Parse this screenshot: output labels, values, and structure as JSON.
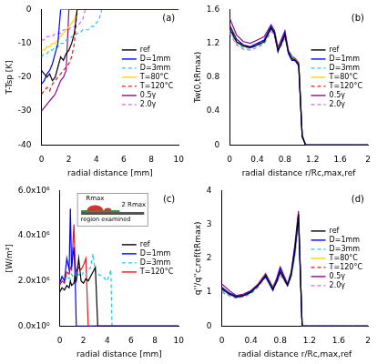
{
  "chart_data": [
    {
      "type": "line",
      "title": "(a)",
      "x_label": "radial distance [mm]",
      "y_label": "T-Tsp [K]",
      "xlim": [
        0,
        10
      ],
      "xticks": [
        0,
        2,
        4,
        6,
        8,
        10
      ],
      "ylim": [
        -40,
        0
      ],
      "yticks": [
        -40,
        -30,
        -20,
        -10,
        0
      ],
      "grid": false,
      "legend": "right",
      "x": [
        0,
        0.2,
        0.4,
        0.6,
        0.8,
        1.0,
        1.2,
        1.4,
        1.6,
        1.8,
        2.0,
        2.2,
        2.4,
        2.6,
        2.8,
        3.0,
        3.2,
        3.4,
        3.6,
        3.8,
        4.0,
        4.2,
        4.4,
        4.6,
        5,
        6,
        8,
        10
      ],
      "series": [
        {
          "name": "ref",
          "color": "#000000",
          "line_style": "solid",
          "values": [
            -18,
            -19,
            -20,
            -19,
            -21,
            -20,
            -17,
            -14,
            -15,
            -13,
            -12,
            -10,
            -7,
            0,
            0,
            0,
            0,
            0,
            0,
            0,
            0,
            0,
            0,
            0,
            0,
            0,
            0,
            0
          ]
        },
        {
          "name": "D=1mm",
          "color": "#0000ff",
          "line_style": "solid",
          "values": [
            -22,
            -21,
            -19,
            -18,
            -16,
            -13,
            -10,
            0,
            0,
            0,
            0,
            0,
            0,
            0,
            0,
            0,
            0,
            0,
            0,
            0,
            0,
            0,
            0,
            0,
            0,
            0,
            0,
            0
          ]
        },
        {
          "name": "D=3mm",
          "color": "#1ec8f0",
          "line_style": "dashed",
          "values": [
            -14,
            -13,
            -13,
            -12,
            -12,
            -11,
            -11,
            -10,
            -10,
            -9,
            -9,
            -8,
            -8,
            -7,
            -7,
            -6,
            -6,
            -6,
            -5,
            -5,
            -4,
            -3,
            0,
            0,
            0,
            0,
            0,
            0
          ]
        },
        {
          "name": "T=80°C",
          "color": "#ffd400",
          "line_style": "solid",
          "values": [
            -12,
            -12,
            -11,
            -11,
            -10,
            -10,
            -9,
            -8,
            -7,
            -6,
            -5,
            -4,
            -3,
            0,
            0,
            0,
            0,
            0,
            0,
            0,
            0,
            0,
            0,
            0,
            0,
            0,
            0,
            0
          ]
        },
        {
          "name": "T=120°C",
          "color": "#e8141e",
          "line_style": "dashed",
          "values": [
            -25,
            -24,
            -23,
            -24,
            -22,
            -21,
            -20,
            -19,
            -18,
            -17,
            -16,
            -14,
            -10,
            0,
            0,
            0,
            0,
            0,
            0,
            0,
            0,
            0,
            0,
            0,
            0,
            0,
            0,
            0
          ]
        },
        {
          "name": "0.5γ",
          "color": "#8c0a8c",
          "line_style": "solid",
          "values": [
            -30,
            -29,
            -28,
            -27,
            -26,
            -25,
            -23,
            -21,
            -20,
            -18,
            0,
            0,
            0,
            0,
            0,
            0,
            0,
            0,
            0,
            0,
            0,
            0,
            0,
            0,
            0,
            0,
            0,
            0
          ]
        },
        {
          "name": "2.0γ",
          "color": "#d36be0",
          "line_style": "dashed",
          "values": [
            -9,
            -9,
            -8,
            -8,
            -8,
            -7,
            -7,
            -7,
            -6,
            -6,
            -6,
            -5,
            -5,
            -5,
            -4,
            -3,
            0,
            0,
            0,
            0,
            0,
            0,
            0,
            0,
            0,
            0,
            0,
            0
          ]
        }
      ]
    },
    {
      "type": "line",
      "title": "(b)",
      "x_label": "radial distance r/Rc,max,ref",
      "y_label": "Tw(0,tRmax)",
      "xlim": [
        0,
        2
      ],
      "xticks": [
        0,
        0.4,
        0.8,
        1.2,
        1.6,
        2
      ],
      "ylim": [
        0,
        1.6
      ],
      "yticks": [
        0,
        0.4,
        0.8,
        1.2,
        1.6
      ],
      "grid": false,
      "legend": "right",
      "x": [
        0,
        0.1,
        0.2,
        0.3,
        0.4,
        0.5,
        0.6,
        0.65,
        0.7,
        0.75,
        0.8,
        0.85,
        0.9,
        0.95,
        1.0,
        1.05,
        1.1,
        1.4,
        2.0
      ],
      "series": [
        {
          "name": "ref",
          "color": "#000000",
          "line_style": "solid",
          "values": [
            1.38,
            1.22,
            1.17,
            1.15,
            1.18,
            1.22,
            1.38,
            1.33,
            1.12,
            1.2,
            1.3,
            1.1,
            1.02,
            1.0,
            0.95,
            0.1,
            0,
            0,
            0
          ]
        },
        {
          "name": "D=1mm",
          "color": "#0000ff",
          "line_style": "solid",
          "values": [
            1.42,
            1.25,
            1.18,
            1.16,
            1.2,
            1.24,
            1.4,
            1.3,
            1.1,
            1.22,
            1.32,
            1.08,
            1.0,
            1.0,
            0.93,
            0.1,
            0,
            0,
            0
          ]
        },
        {
          "name": "D=3mm",
          "color": "#1ec8f0",
          "line_style": "dashed",
          "values": [
            1.35,
            1.2,
            1.15,
            1.14,
            1.17,
            1.2,
            1.36,
            1.32,
            1.13,
            1.19,
            1.28,
            1.12,
            1.04,
            1.01,
            0.96,
            0.12,
            0,
            0,
            0
          ]
        },
        {
          "name": "T=80°C",
          "color": "#ffd400",
          "line_style": "solid",
          "values": [
            1.37,
            1.21,
            1.16,
            1.15,
            1.18,
            1.21,
            1.37,
            1.33,
            1.12,
            1.2,
            1.29,
            1.1,
            1.03,
            1.0,
            0.95,
            0.1,
            0,
            0,
            0
          ]
        },
        {
          "name": "T=120°C",
          "color": "#e8141e",
          "line_style": "dashed",
          "values": [
            1.4,
            1.23,
            1.18,
            1.16,
            1.19,
            1.23,
            1.39,
            1.31,
            1.11,
            1.21,
            1.31,
            1.09,
            1.02,
            0.99,
            0.94,
            0.1,
            0,
            0,
            0
          ]
        },
        {
          "name": "0.5γ",
          "color": "#8c0a8c",
          "line_style": "solid",
          "values": [
            1.5,
            1.3,
            1.22,
            1.2,
            1.24,
            1.28,
            1.42,
            1.35,
            1.15,
            1.25,
            1.35,
            1.12,
            1.05,
            1.02,
            0.97,
            0.12,
            0,
            0,
            0
          ]
        },
        {
          "name": "2.0γ",
          "color": "#d36be0",
          "line_style": "dashed",
          "values": [
            1.32,
            1.18,
            1.13,
            1.12,
            1.15,
            1.19,
            1.34,
            1.3,
            1.12,
            1.17,
            1.26,
            1.1,
            1.02,
            1.0,
            0.95,
            0.1,
            0,
            0,
            0
          ]
        }
      ]
    },
    {
      "type": "line",
      "title": "(c)",
      "x_label": "radial distance [mm]",
      "y_label": "[W/m²]",
      "xlim": [
        0,
        10
      ],
      "xticks": [
        0,
        2,
        4,
        6,
        8,
        10
      ],
      "ylim": [
        0,
        6000000
      ],
      "yticks": [
        {
          "value": 0,
          "label": "0.0x10⁰"
        },
        {
          "value": 2000000,
          "label": "2.0x10⁶"
        },
        {
          "value": 4000000,
          "label": "4.0x10⁶"
        },
        {
          "value": 6000000,
          "label": "6.0x10⁶"
        }
      ],
      "grid": false,
      "legend": "right",
      "annotations": [
        "Rmax",
        "2 Rmax",
        "region examined"
      ],
      "x": [
        0,
        0.2,
        0.4,
        0.6,
        0.8,
        0.9,
        1.0,
        1.2,
        1.3,
        1.4,
        1.6,
        1.8,
        2.0,
        2.2,
        2.4,
        2.6,
        2.8,
        3.0,
        3.2,
        3.6,
        4.0,
        4.2,
        4.3,
        4.4,
        4.6,
        6,
        8,
        10
      ],
      "series": [
        {
          "name": "ref",
          "color": "#000000",
          "line_style": "solid",
          "values": [
            1500000,
            1700000,
            1600000,
            1800000,
            1700000,
            2000000,
            1800000,
            1900000,
            2200000,
            2000000,
            3000000,
            2000000,
            1900000,
            2100000,
            2000000,
            2200000,
            2400000,
            2600000,
            0,
            0,
            0,
            0,
            0,
            0,
            0,
            0,
            0,
            0
          ]
        },
        {
          "name": "D=1mm",
          "color": "#0000ff",
          "line_style": "solid",
          "values": [
            1900000,
            2200000,
            2000000,
            3000000,
            2500000,
            5200000,
            2600000,
            3500000,
            2200000,
            0,
            0,
            0,
            0,
            0,
            0,
            0,
            0,
            0,
            0,
            0,
            0,
            0,
            0,
            0,
            0,
            0,
            0,
            0
          ]
        },
        {
          "name": "D=3mm",
          "color": "#1ec8f0",
          "line_style": "dashed",
          "values": [
            2000000,
            2100000,
            2000000,
            2200000,
            2100000,
            2200000,
            2300000,
            2100000,
            2400000,
            2200000,
            2300000,
            2200000,
            2400000,
            2300000,
            2500000,
            2600000,
            3200000,
            2400000,
            2300000,
            2200000,
            2000000,
            2300000,
            2500000,
            0,
            0,
            0,
            0,
            0
          ]
        },
        {
          "name": "T=120°C",
          "color": "#e8141e",
          "line_style": "solid",
          "values": [
            1800000,
            2000000,
            1900000,
            2400000,
            2300000,
            2600000,
            2500000,
            4500000,
            2800000,
            2400000,
            2600000,
            2500000,
            2700000,
            3000000,
            0,
            0,
            0,
            0,
            0,
            0,
            0,
            0,
            0,
            0,
            0,
            0,
            0,
            0
          ]
        }
      ]
    },
    {
      "type": "line",
      "title": "(d)",
      "x_label": "radial distance r/Rc,max,ref",
      "y_label": "q''/q''c,ref(tRmax)",
      "xlim": [
        0,
        2
      ],
      "xticks": [
        0,
        0.4,
        0.8,
        1.2,
        1.6,
        2
      ],
      "ylim": [
        0,
        4
      ],
      "yticks": [
        0,
        1,
        2,
        3,
        4
      ],
      "grid": false,
      "legend": "right",
      "x": [
        0,
        0.1,
        0.2,
        0.3,
        0.4,
        0.5,
        0.6,
        0.65,
        0.7,
        0.75,
        0.8,
        0.85,
        0.9,
        0.95,
        1.0,
        1.05,
        1.1,
        1.4,
        2.0
      ],
      "series": [
        {
          "name": "ref",
          "color": "#000000",
          "line_style": "solid",
          "values": [
            1.1,
            0.95,
            0.85,
            0.9,
            1.0,
            1.2,
            1.5,
            1.3,
            1.1,
            1.3,
            1.6,
            1.4,
            1.2,
            1.5,
            2.2,
            3.3,
            0,
            0,
            0
          ]
        },
        {
          "name": "D=1mm",
          "color": "#0000ff",
          "line_style": "solid",
          "values": [
            1.15,
            0.98,
            0.88,
            0.92,
            1.02,
            1.22,
            1.45,
            1.25,
            1.05,
            1.35,
            1.7,
            1.45,
            1.22,
            1.55,
            2.3,
            3.2,
            0,
            0,
            0
          ]
        },
        {
          "name": "D=3mm",
          "color": "#1ec8f0",
          "line_style": "dashed",
          "values": [
            1.05,
            0.92,
            0.85,
            0.88,
            0.98,
            1.18,
            1.5,
            1.32,
            1.12,
            1.28,
            1.55,
            1.38,
            1.2,
            1.48,
            2.1,
            3.1,
            0,
            0,
            0
          ]
        },
        {
          "name": "T=80°C",
          "color": "#ffd400",
          "line_style": "solid",
          "values": [
            1.08,
            0.94,
            0.86,
            0.9,
            1.0,
            1.2,
            1.48,
            1.3,
            1.1,
            1.3,
            1.6,
            1.4,
            1.2,
            1.5,
            2.2,
            3.2,
            0,
            0,
            0
          ]
        },
        {
          "name": "T=120°C",
          "color": "#e8141e",
          "line_style": "dashed",
          "values": [
            1.12,
            0.96,
            0.87,
            0.91,
            1.01,
            1.21,
            1.52,
            1.28,
            1.08,
            1.32,
            1.62,
            1.42,
            1.21,
            1.52,
            2.25,
            3.3,
            0,
            0,
            0
          ]
        },
        {
          "name": "0.5γ",
          "color": "#8c0a8c",
          "line_style": "solid",
          "values": [
            1.25,
            1.05,
            0.9,
            0.95,
            1.05,
            1.25,
            1.55,
            1.35,
            1.15,
            1.4,
            1.75,
            1.5,
            1.25,
            1.6,
            2.4,
            3.4,
            0,
            0,
            0
          ]
        },
        {
          "name": "2.0γ",
          "color": "#d36be0",
          "line_style": "dashed",
          "values": [
            1.0,
            0.9,
            0.82,
            0.86,
            0.96,
            1.15,
            1.45,
            1.28,
            1.1,
            1.27,
            1.5,
            1.35,
            1.18,
            1.45,
            2.05,
            3.0,
            0,
            0,
            0
          ]
        }
      ]
    }
  ]
}
